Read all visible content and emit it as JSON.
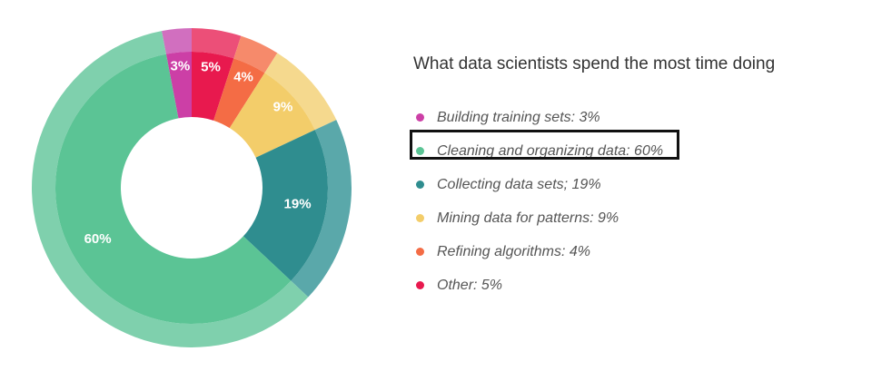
{
  "chart_data": {
    "type": "pie",
    "title": "What data scientists spend the most time doing",
    "slices": [
      {
        "name": "Building training sets",
        "legend": "Building training sets: 3%",
        "label": "3%",
        "value": 3,
        "color": "#cc3fa6",
        "outer_color": "#d16fbf"
      },
      {
        "name": "Other",
        "legend": "Other: 5%",
        "label": "5%",
        "value": 5,
        "color": "#e8194e",
        "outer_color": "#ec4f78"
      },
      {
        "name": "Refining algorithms",
        "legend": "Refining algorithms: 4%",
        "label": "4%",
        "value": 4,
        "color": "#f46c45",
        "outer_color": "#f68a6b"
      },
      {
        "name": "Mining data for patterns",
        "legend": "Mining data for patterns: 9%",
        "label": "9%",
        "value": 9,
        "color": "#f3cd6a",
        "outer_color": "#f5d98e"
      },
      {
        "name": "Collecting data sets",
        "legend": "Collecting data sets; 19%",
        "label": "19%",
        "value": 19,
        "color": "#2f8d8f",
        "outer_color": "#5aa8aa"
      },
      {
        "name": "Cleaning and organizing data",
        "legend": "Cleaning and organizing data: 60%",
        "label": "60%",
        "value": 60,
        "color": "#5bc495",
        "outer_color": "#7fd0ad"
      }
    ],
    "legend_order": [
      "Building training sets",
      "Cleaning and organizing data",
      "Collecting data sets",
      "Mining data for patterns",
      "Refining algorithms",
      "Other"
    ],
    "highlighted": "Cleaning and organizing data",
    "legend_placement": "right"
  }
}
